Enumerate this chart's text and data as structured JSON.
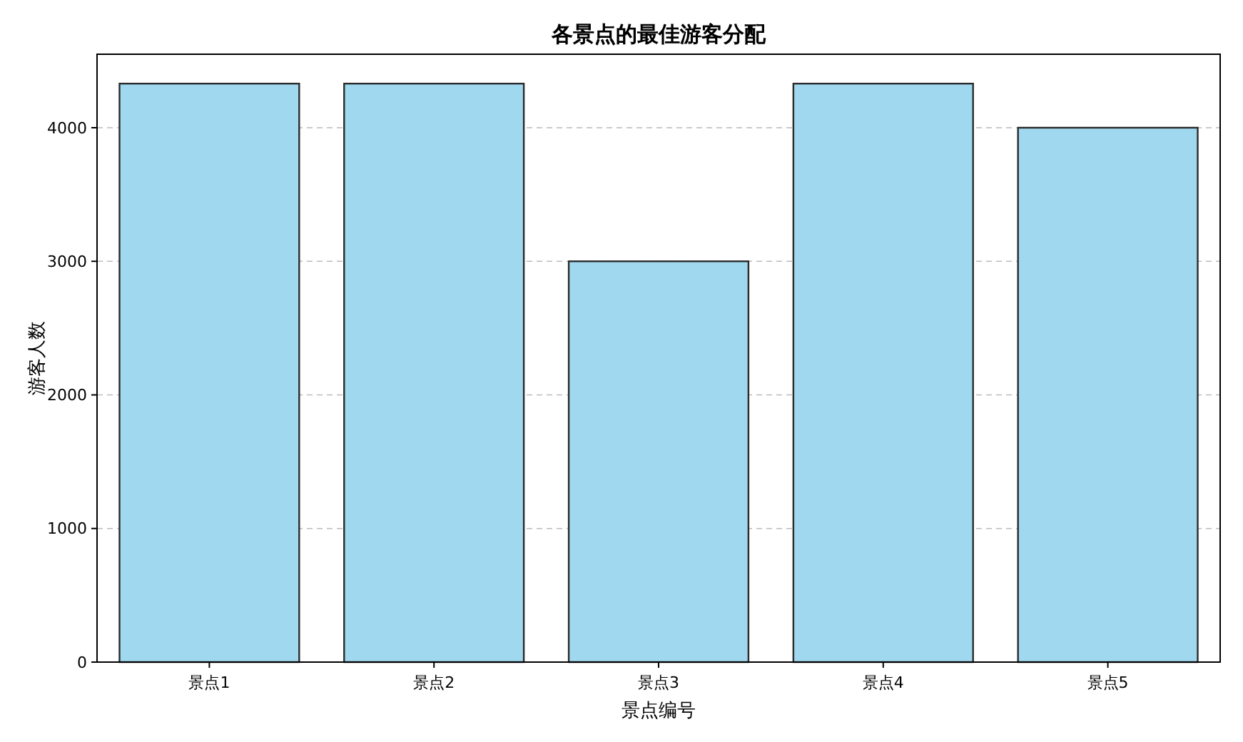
{
  "chart_data": {
    "type": "bar",
    "title": "各景点的最佳游客分配",
    "xlabel": "景点编号",
    "ylabel": "游客人数",
    "categories": [
      "景点1",
      "景点2",
      "景点3",
      "景点4",
      "景点5"
    ],
    "values": [
      4330,
      4330,
      3000,
      4330,
      4000
    ],
    "color": "#9fd8ef",
    "ylim": [
      0,
      4550
    ],
    "yticks": [
      0,
      1000,
      2000,
      3000,
      4000
    ],
    "grid": "y"
  }
}
